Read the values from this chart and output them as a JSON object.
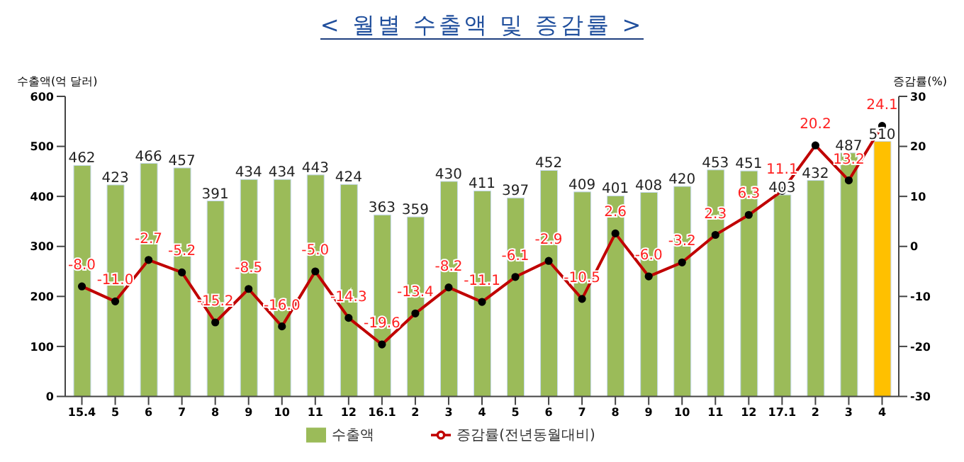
{
  "chart_data": {
    "type": "bar",
    "title": "< 월별 수출액 및 증감률 >",
    "ylabel": "수출액(억 달러)",
    "y2label": "증감률(%)",
    "categories": [
      "15.4",
      "5",
      "6",
      "7",
      "8",
      "9",
      "10",
      "11",
      "12",
      "16.1",
      "2",
      "3",
      "4",
      "5",
      "6",
      "7",
      "8",
      "9",
      "10",
      "11",
      "12",
      "17.1",
      "2",
      "3",
      "4"
    ],
    "series": [
      {
        "name": "수출액",
        "color": "#9bbb59",
        "colors": [
          "#9bbb59",
          "#9bbb59",
          "#9bbb59",
          "#9bbb59",
          "#9bbb59",
          "#9bbb59",
          "#9bbb59",
          "#9bbb59",
          "#9bbb59",
          "#9bbb59",
          "#9bbb59",
          "#9bbb59",
          "#9bbb59",
          "#9bbb59",
          "#9bbb59",
          "#9bbb59",
          "#9bbb59",
          "#9bbb59",
          "#9bbb59",
          "#9bbb59",
          "#9bbb59",
          "#9bbb59",
          "#9bbb59",
          "#9bbb59",
          "#ffc000"
        ],
        "values": [
          462,
          423,
          466,
          457,
          391,
          434,
          434,
          443,
          424,
          363,
          359,
          430,
          411,
          397,
          452,
          409,
          401,
          408,
          420,
          453,
          451,
          403,
          432,
          487,
          510
        ]
      },
      {
        "name": "증감률(전년동월대비)",
        "type": "line",
        "axis": "y2",
        "color": "#c00000",
        "marker": "circle",
        "values": [
          -8.0,
          -11.0,
          -2.7,
          -5.2,
          -15.2,
          -8.5,
          -16.0,
          -5.0,
          -14.3,
          -19.6,
          -13.4,
          -8.2,
          -11.1,
          -6.1,
          -2.9,
          -10.5,
          2.6,
          -6.0,
          -3.2,
          2.3,
          6.3,
          11.1,
          20.2,
          13.2,
          24.1
        ],
        "value_labels": [
          "-8.0",
          "-11.0",
          "-2.7",
          "-5.2",
          "-15.2",
          "-8.5",
          "-16.0",
          "-5.0",
          "-14.3",
          "-19.6",
          "-13.4",
          "-8.2",
          "-11.1",
          "-6.1",
          "-2.9",
          "-10.5",
          "2.6",
          "-6.0",
          "-3.2",
          "2.3",
          "6.3",
          "11.1",
          "20.2",
          "13.2",
          "24.1"
        ]
      }
    ],
    "data_labels": true,
    "ylim": [
      0,
      600
    ],
    "yticks": [
      0,
      100,
      200,
      300,
      400,
      500,
      600
    ],
    "y2lim": [
      -30,
      30
    ],
    "y2ticks": [
      -30,
      -20,
      -10,
      0,
      10,
      20,
      30
    ],
    "grid": false,
    "legend": "bottom"
  }
}
